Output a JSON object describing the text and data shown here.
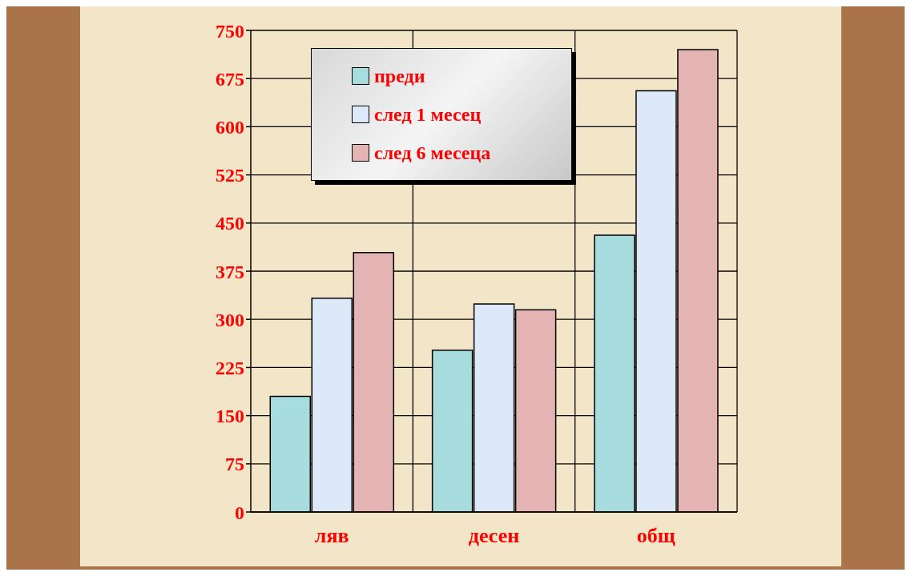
{
  "chart_data": {
    "type": "bar",
    "categories": [
      "ляв",
      "десен",
      "общ"
    ],
    "series": [
      {
        "name": "преди",
        "color": "#a8dde0",
        "values": [
          180,
          252,
          431
        ]
      },
      {
        "name": "след 1 месец",
        "color": "#dde9f8",
        "values": [
          333,
          324,
          656
        ]
      },
      {
        "name": "след 6 месеца",
        "color": "#e4b4b4",
        "values": [
          404,
          315,
          720
        ]
      }
    ],
    "ylim": [
      0,
      750
    ],
    "yticks": [
      0,
      75,
      150,
      225,
      300,
      375,
      450,
      525,
      600,
      675,
      750
    ],
    "grid": true,
    "legend": "top"
  }
}
